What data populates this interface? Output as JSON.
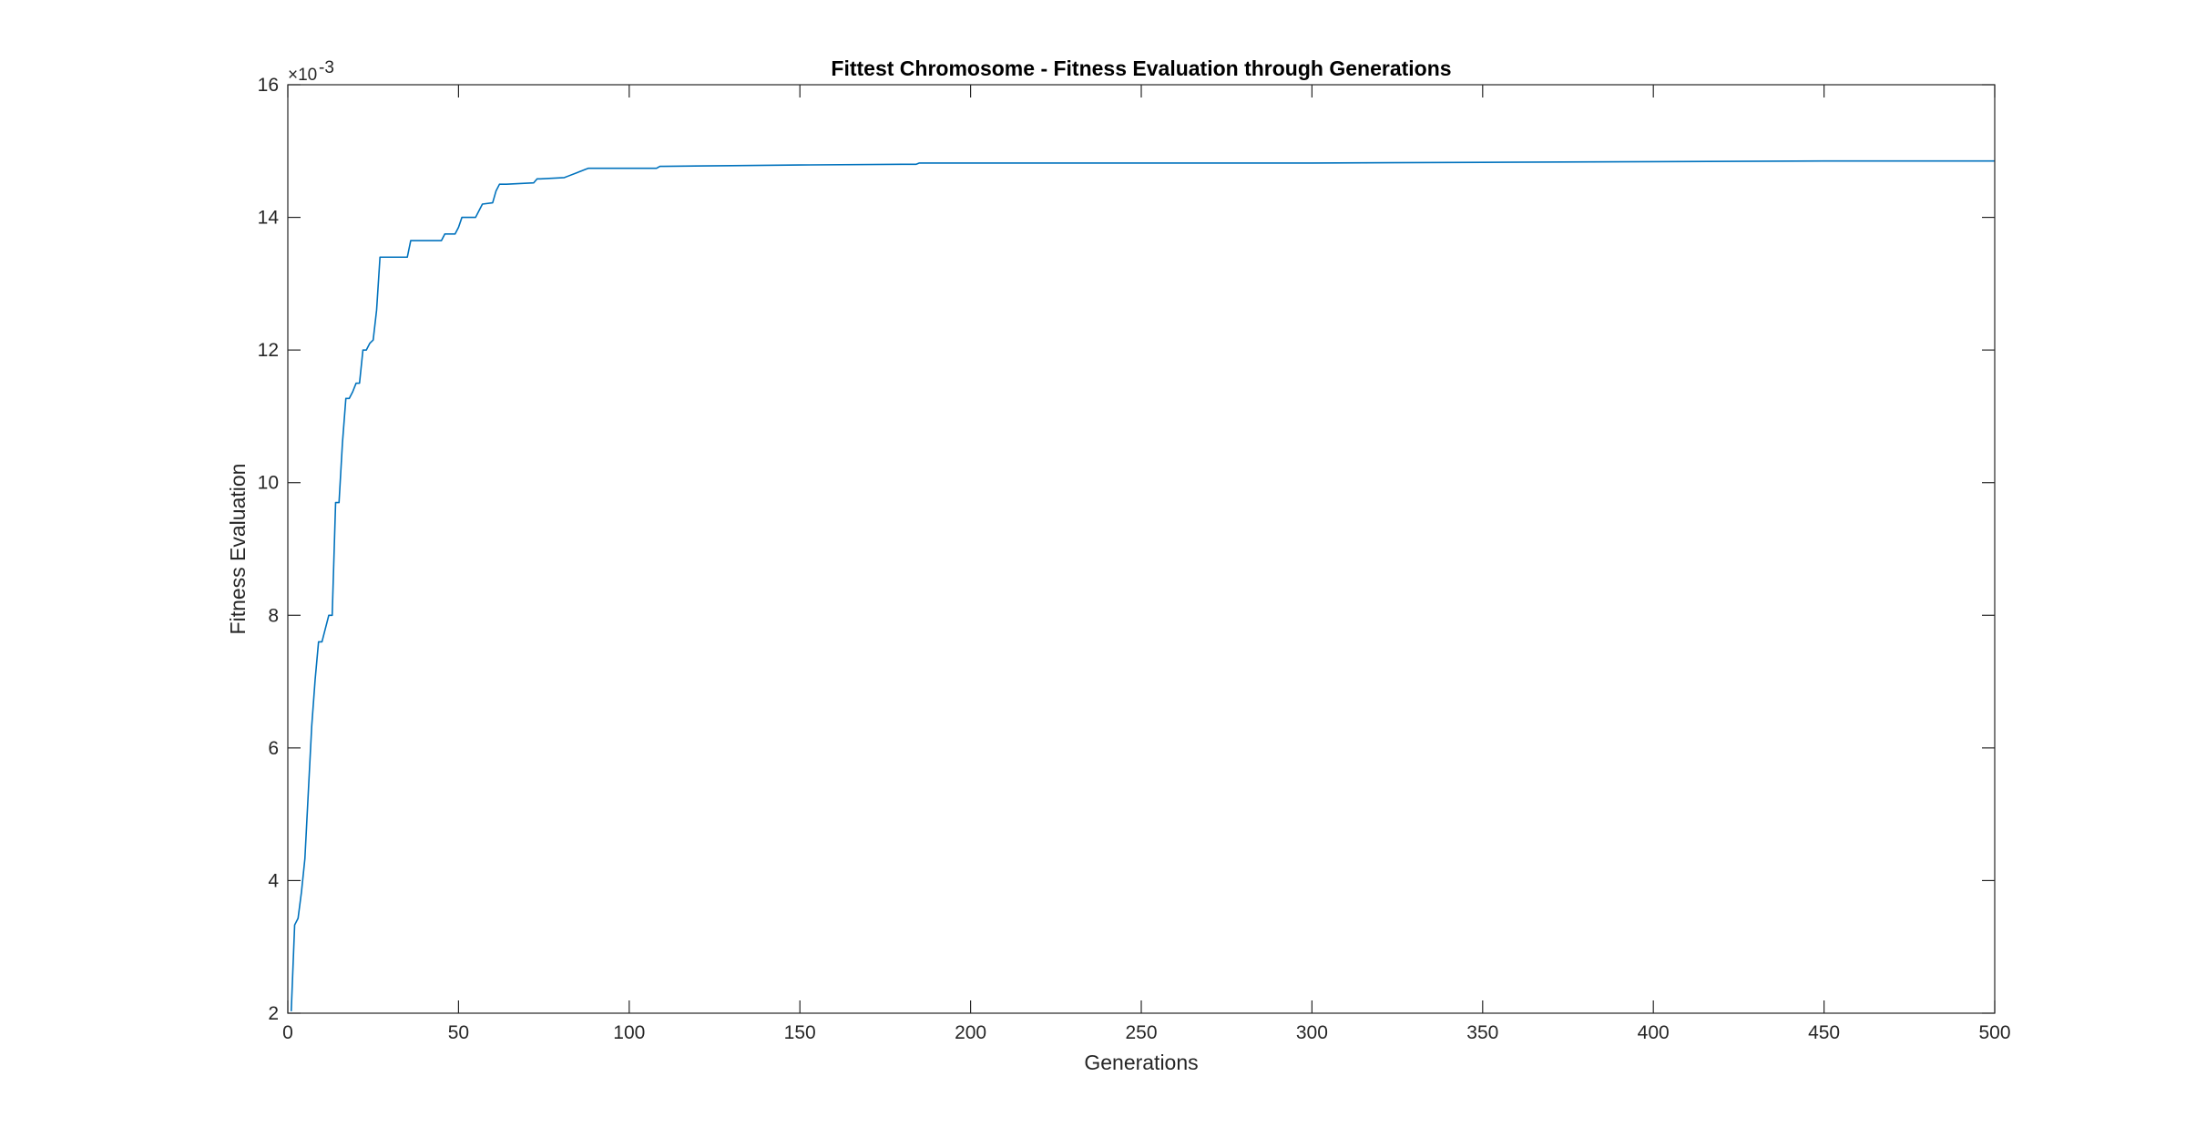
{
  "chart_data": {
    "type": "line",
    "title": "Fittest Chromosome - Fitness Evaluation through Generations",
    "xlabel": "Generations",
    "ylabel": "Fitness Evaluation",
    "xlim": [
      0,
      500
    ],
    "ylim": [
      0.002,
      0.016
    ],
    "y_exponent_label": "×10",
    "y_exponent_power": "-3",
    "grid": false,
    "legend": "none",
    "x_ticks": [
      0,
      50,
      100,
      150,
      200,
      250,
      300,
      350,
      400,
      450,
      500
    ],
    "x_tick_labels": [
      "0",
      "50",
      "100",
      "150",
      "200",
      "250",
      "300",
      "350",
      "400",
      "450",
      "500"
    ],
    "y_ticks": [
      0.002,
      0.004,
      0.006,
      0.008,
      0.01,
      0.012,
      0.014,
      0.016
    ],
    "y_tick_labels": [
      "2",
      "4",
      "6",
      "8",
      "10",
      "12",
      "14",
      "16"
    ],
    "series": [
      {
        "color": "#0072BD",
        "x": [
          1,
          2,
          3,
          4,
          5,
          6,
          7,
          8,
          9,
          10,
          11,
          12,
          13,
          14,
          15,
          16,
          17,
          18,
          19,
          20,
          21,
          22,
          23,
          24,
          25,
          26,
          27,
          28,
          35,
          36,
          37,
          45,
          46,
          49,
          50,
          51,
          55,
          56,
          57,
          60,
          61,
          62,
          63,
          64,
          72,
          73,
          74,
          81,
          82,
          85,
          86,
          87,
          88,
          108,
          109,
          110,
          130,
          150,
          180,
          184,
          185,
          250,
          300,
          350,
          400,
          450,
          500
        ],
        "y": [
          0.00203,
          0.00333,
          0.00343,
          0.00383,
          0.00433,
          0.00533,
          0.00633,
          0.00703,
          0.0076,
          0.0076,
          0.0078,
          0.008,
          0.008,
          0.0097,
          0.0097,
          0.0106,
          0.01127,
          0.01127,
          0.01137,
          0.0115,
          0.0115,
          0.012,
          0.012,
          0.0121,
          0.01215,
          0.0126,
          0.0134,
          0.0134,
          0.0134,
          0.01365,
          0.01365,
          0.01365,
          0.01375,
          0.01375,
          0.01385,
          0.014,
          0.014,
          0.0141,
          0.0142,
          0.01422,
          0.0144,
          0.0145,
          0.0145,
          0.0145,
          0.01452,
          0.01458,
          0.01458,
          0.0146,
          0.01462,
          0.01468,
          0.0147,
          0.01472,
          0.01474,
          0.01474,
          0.01477,
          0.01477,
          0.01478,
          0.01479,
          0.0148,
          0.0148,
          0.01482,
          0.01482,
          0.01482,
          0.01483,
          0.01484,
          0.01485,
          0.01485
        ]
      }
    ]
  }
}
